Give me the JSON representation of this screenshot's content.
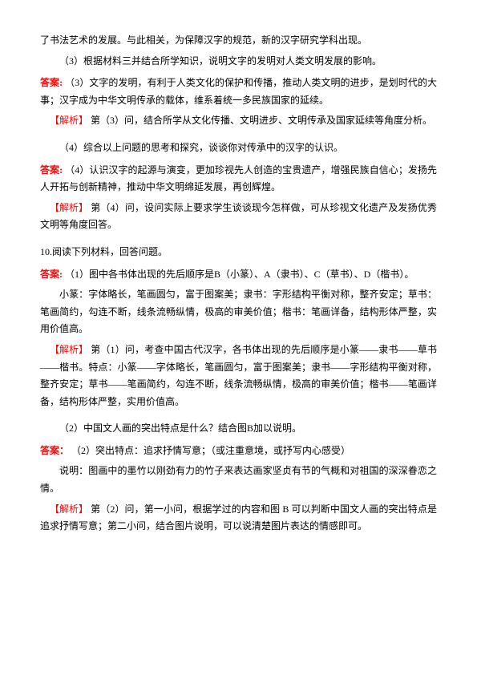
{
  "q1": {
    "context_line1": "了书法艺术的发展。与此相关，为保障汉字的规范，新的汉字研究学科出现。",
    "context_line2": "（3）根据材料三并结合所学知识，说明文字的发明对人类文明发展的影响。",
    "answer_label": "答案:",
    "answer_text": "（3）文字的发明，有利于人类文化的保护和传播，推动人类文明的进步，是划时代的大事；汉字成为中华文明传承的载体，维系着统一多民族国家的延续。",
    "analysis_label": "【解析】",
    "analysis_text": "第（3）问，结合所学从文化传播、文明进步、文明传承及国家延续等角度分析。"
  },
  "q2": {
    "question": "（4）综合以上问题的思考和探究，谈谈你对传承中的汉字的认识。",
    "answer_label": "答案:",
    "answer_text": "（4）认识汉字的起源与演变，更加珍视先人创造的宝贵遗产，增强民族自信心；发扬先人开拓与创新精神，推动中华文明绵延发展，再创辉煌。",
    "analysis_label": "【解析】",
    "analysis_text": "第（4）问，设问实际上要求学生谈谈现今怎样做，可从珍视文化遗产及发扬优秀文明等角度回答。"
  },
  "q3": {
    "intro": "10.阅读下列材料，回答问题。",
    "answer_label": "答案:",
    "answer_text": "（1）图中各书体出现的先后顺序是B（小篆）、A（隶书）、C（草书）、D（楷书）。",
    "details_line1": "小篆：字体略长，笔画圆匀，富于图案美；隶书：字形结构平衡对称，整齐安定；草书：笔画简约，勾连不断，线条流畅纵情，极高的审美价值；楷书：笔画详备，结构形体严整，实用价值高。",
    "analysis_label": "【解析】",
    "analysis_text": "第（1）问，考查中国古代汉字，各书体出现的先后顺序是小篆——隶书——草书——楷书。特点：小篆——字体略长，笔画圆匀，富于图案美；隶书——字形结构平衡对称，整齐安定；草书——笔画简约，勾连不断，线条流畅纵情，极高的审美价值；楷书——笔画详备，结构形体严整，实用价值高。"
  },
  "q4": {
    "question": "（2）中国文人画的突出特点是什么？结合图B加以说明。",
    "answer_label": "答案：",
    "answer_text": "（2）突出特点：追求抒情写意；（或注重意境，或抒写内心感受）",
    "details_line1": "说明：图画中的墨竹以刚劲有力的竹子来表达画家坚贞有节的气概和对祖国的深深眷恋之情。",
    "analysis_label": "【解析】",
    "analysis_text": "第（2）问，第一小问，根据学过的内容和图 B 可以判断中国文人画的突出特点是追求抒情写意；第二小问，结合图片说明，可以说清楚图片表达的情感即可。"
  }
}
